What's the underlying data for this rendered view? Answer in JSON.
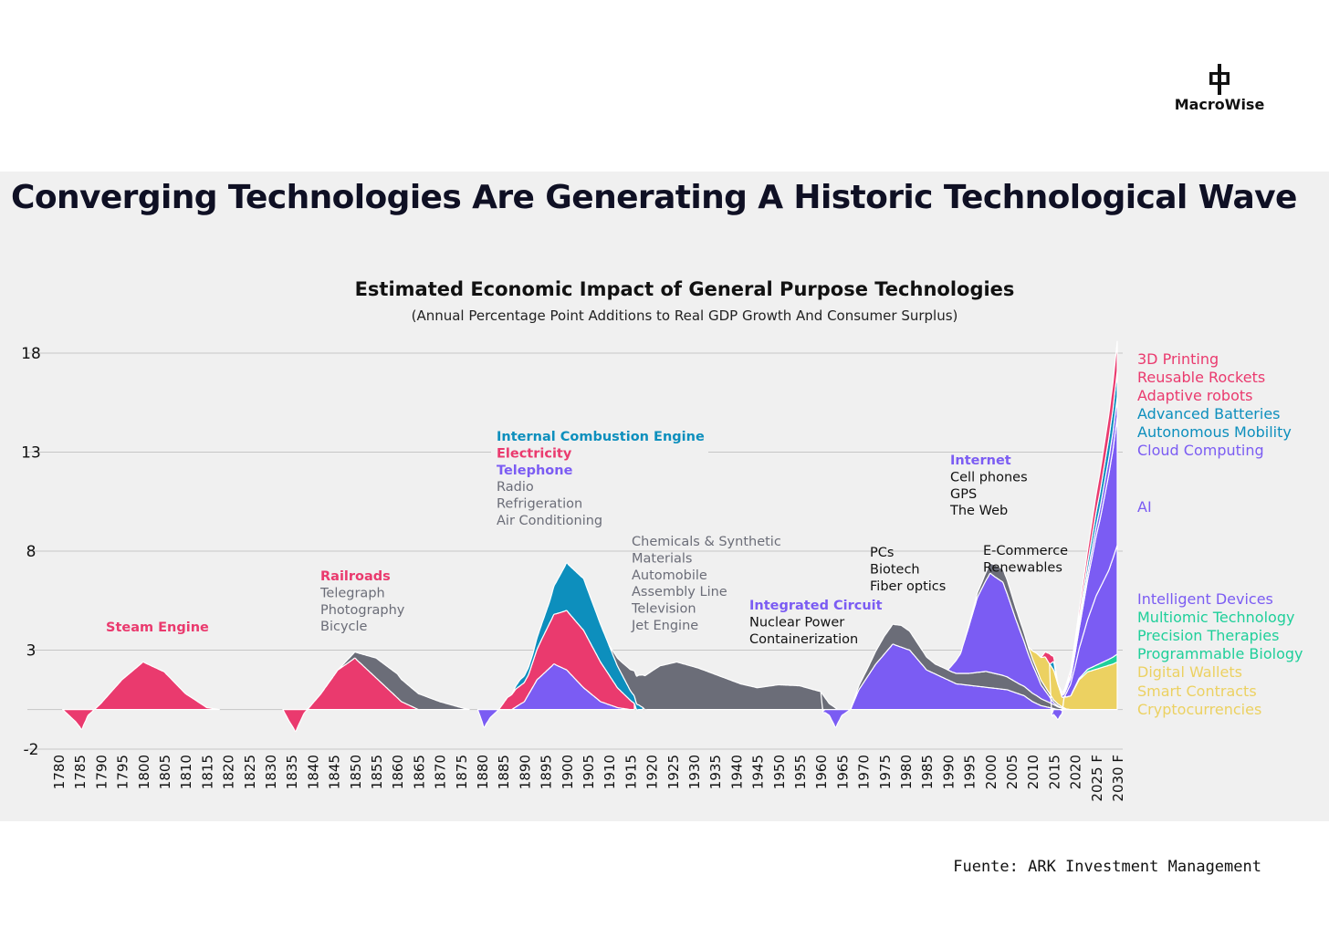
{
  "brand": {
    "name": "MacroWise"
  },
  "headline": "Converging Technologies Are Generating A Historic Technological Wave",
  "source": "Fuente: ARK Investment Management",
  "colors": {
    "pink": "#ea3a6e",
    "blue": "#0d8fbd",
    "purple": "#7b5cf3",
    "gray": "#6b6d78",
    "teal": "#1fcf9a",
    "yellow": "#ecd161",
    "panel": "#f0f0f0",
    "title": "#0f1024"
  },
  "chart_data": {
    "type": "area",
    "title": "Estimated Economic Impact of General Purpose Technologies",
    "subtitle": "(Annual Percentage Point Additions to Real GDP Growth And Consumer Surplus)",
    "xlabel": "",
    "ylabel": "",
    "ylim": [
      -2,
      18
    ],
    "y_ticks": [
      18,
      13,
      8,
      3,
      -2
    ],
    "grid": true,
    "x_ticks": [
      "1780",
      "1785",
      "1790",
      "1795",
      "1800",
      "1805",
      "1810",
      "1815",
      "1820",
      "1825",
      "1830",
      "1835",
      "1840",
      "1845",
      "1850",
      "1855",
      "1860",
      "1865",
      "1870",
      "1875",
      "1880",
      "1885",
      "1890",
      "1895",
      "1900",
      "1905",
      "1910",
      "1915",
      "1920",
      "1925",
      "1930",
      "1935",
      "1940",
      "1945",
      "1950",
      "1955",
      "1960",
      "1965",
      "1970",
      "1975",
      "1980",
      "1985",
      "1990",
      "1995",
      "2000",
      "2005",
      "2010",
      "2015",
      "2020",
      "2025 F",
      "2030 F"
    ],
    "x_tick_years": [
      1780,
      1785,
      1790,
      1795,
      1800,
      1805,
      1810,
      1815,
      1820,
      1825,
      1830,
      1835,
      1840,
      1845,
      1850,
      1855,
      1860,
      1865,
      1870,
      1875,
      1880,
      1885,
      1890,
      1895,
      1900,
      1905,
      1910,
      1915,
      1920,
      1925,
      1930,
      1935,
      1940,
      1945,
      1950,
      1955,
      1960,
      1965,
      1970,
      1975,
      1980,
      1985,
      1990,
      1995,
      2000,
      2005,
      2010,
      2015,
      2020,
      2025,
      2030
    ],
    "series": [
      {
        "name": "Steam Engine",
        "color": "pink",
        "x": [
          1781,
          1784,
          1785.5,
          1787,
          1790,
          1795,
          1800,
          1805,
          1810,
          1815,
          1818
        ],
        "y": [
          0,
          -0.6,
          -1.0,
          -0.3,
          0.3,
          1.5,
          2.4,
          1.9,
          0.8,
          0.1,
          0
        ]
      },
      {
        "name": "Railroads",
        "color": "pink",
        "x": [
          1833,
          1834.5,
          1836,
          1838,
          1842,
          1846,
          1850,
          1853,
          1857,
          1861,
          1865
        ],
        "y": [
          0,
          -0.6,
          -1.1,
          -0.2,
          0.8,
          2.0,
          2.6,
          2.0,
          1.2,
          0.4,
          0
        ]
      },
      {
        "name": "Telegraph, Photography, Bicycle",
        "color": "gray",
        "x": [
          1846,
          1850,
          1855,
          1860,
          1865,
          1870,
          1875,
          1877
        ],
        "y": [
          0,
          0.3,
          1.0,
          1.2,
          0.8,
          0.4,
          0.1,
          0
        ]
      },
      {
        "name": "Telephone, Radio",
        "color": "purple",
        "x": [
          1879,
          1880.5,
          1882,
          1884,
          1887,
          1890,
          1893,
          1897,
          1900,
          1904,
          1908,
          1912,
          1915
        ],
        "y": [
          0,
          -0.9,
          -0.4,
          0,
          0,
          0.4,
          1.5,
          2.3,
          2.0,
          1.1,
          0.4,
          0.1,
          0
        ]
      },
      {
        "name": "Electricity",
        "color": "pink",
        "x": [
          1884,
          1886,
          1888,
          1891,
          1894,
          1897,
          1900,
          1904,
          1908,
          1912,
          1916
        ],
        "y": [
          0,
          0.6,
          0.9,
          1.0,
          1.8,
          2.5,
          3.0,
          2.9,
          2.0,
          1.0,
          0.3
        ]
      },
      {
        "name": "Internal Combustion Engine",
        "color": "blue",
        "x": [
          1887,
          1889,
          1892,
          1896,
          1900,
          1904,
          1908,
          1912,
          1915,
          1918
        ],
        "y": [
          0,
          0.3,
          0.4,
          1.1,
          2.4,
          2.6,
          1.9,
          1.1,
          0.5,
          0.1
        ]
      },
      {
        "name": "Chemicals & Synthetic Materials, Automobile, Assembly Line, Television, Jet Engine",
        "color": "gray",
        "x": [
          1910,
          1913,
          1917,
          1922,
          1926,
          1931,
          1936,
          1941,
          1945,
          1950,
          1955,
          1960,
          1962,
          1964,
          1967
        ],
        "y": [
          0,
          0.6,
          1.5,
          2.2,
          2.4,
          2.1,
          1.7,
          1.3,
          1.1,
          1.25,
          1.2,
          0.9,
          0.3,
          0,
          0
        ]
      },
      {
        "name": "Integrated Circuit",
        "color": "purple",
        "x": [
          1960,
          1962,
          1963.5,
          1965,
          1967,
          1969,
          1973,
          1977,
          1981,
          1985,
          1989,
          1992,
          1996,
          2000,
          2004,
          2008,
          2010,
          2012,
          2016
        ],
        "y": [
          0,
          -0.3,
          -0.9,
          -0.3,
          0,
          1.0,
          2.3,
          3.3,
          3.0,
          2.0,
          1.6,
          1.3,
          1.2,
          1.1,
          1.0,
          0.7,
          0.4,
          0.2,
          0
        ]
      },
      {
        "name": "PCs, Biotech, Fiber optics",
        "color": "gray",
        "x": [
          1967,
          1971,
          1975,
          1979,
          1983,
          1987,
          1991,
          1995,
          1999,
          2003,
          2007,
          2011,
          2015,
          2018
        ],
        "y": [
          0,
          0.4,
          0.9,
          1.1,
          0.8,
          0.5,
          0.5,
          0.6,
          0.8,
          0.7,
          0.5,
          0.4,
          0.2,
          0
        ]
      },
      {
        "name": "Internet, Cell phones, GPS, The Web",
        "color": "purple",
        "x": [
          1990,
          1993,
          1997,
          2000,
          2003,
          2006,
          2009,
          2012,
          2015,
          2017
        ],
        "y": [
          0,
          1.0,
          3.8,
          5.0,
          4.7,
          3.2,
          1.8,
          0.7,
          0.1,
          0
        ]
      },
      {
        "name": "E-Commerce, Renewables",
        "color": "gray",
        "x": [
          1994,
          1998,
          2001,
          2004,
          2007,
          2010,
          2013,
          2016,
          2019
        ],
        "y": [
          0,
          0.3,
          0.6,
          0.7,
          0.5,
          0.3,
          0.2,
          0.1,
          0
        ]
      },
      {
        "name": "Crypto & Digital Wallets",
        "color": "yellow",
        "x": [
          2009,
          2011,
          2013,
          2015,
          2017,
          2019,
          2021,
          2023,
          2026,
          2029,
          2030
        ],
        "y": [
          0,
          0.8,
          1.5,
          1.5,
          0.5,
          0.7,
          1.5,
          1.9,
          2.1,
          2.3,
          2.4
        ]
      },
      {
        "name": "Programmable Biology",
        "color": "teal",
        "x": [
          2016,
          2019,
          2022,
          2025,
          2028,
          2030
        ],
        "y": [
          0,
          0,
          0.1,
          0.2,
          0.3,
          0.4
        ]
      },
      {
        "name": "Intelligent Devices",
        "color": "purple",
        "x": [
          2014,
          2016,
          2018,
          2020,
          2022,
          2025,
          2028,
          2030
        ],
        "y": [
          0,
          -0.5,
          0.2,
          1.0,
          2.0,
          3.5,
          4.5,
          5.5
        ]
      },
      {
        "name": "AI",
        "color": "purple",
        "x": [
          2016,
          2019,
          2021,
          2023,
          2026,
          2029,
          2030
        ],
        "y": [
          0,
          0.3,
          1.0,
          2.0,
          3.5,
          5.5,
          6.5
        ]
      },
      {
        "name": "Cloud Computing",
        "color": "purple",
        "x": [
          2016,
          2019,
          2022,
          2025,
          2028,
          2030
        ],
        "y": [
          0,
          0.1,
          0.3,
          0.5,
          0.8,
          1.0
        ]
      },
      {
        "name": "Advanced Batteries & Autonomous Mobility",
        "color": "blue",
        "x": [
          2014,
          2015,
          2016,
          2019,
          2022,
          2025,
          2028,
          2030
        ],
        "y": [
          0,
          0.4,
          0,
          0.1,
          0.4,
          0.7,
          1.0,
          1.3
        ]
      },
      {
        "name": "3D Printing, Reusable Rockets, Adaptive robots",
        "color": "pink",
        "x": [
          2012,
          2014,
          2016,
          2019,
          2022,
          2025,
          2028,
          2030
        ],
        "y": [
          0,
          0.5,
          0,
          0.2,
          0.5,
          0.9,
          1.2,
          1.5
        ]
      }
    ],
    "annotations": [
      {
        "lines": [
          {
            "text": "Steam Engine",
            "color": "pink",
            "bold": true
          }
        ]
      },
      {
        "lines": [
          {
            "text": "Railroads",
            "color": "pink",
            "bold": true
          },
          {
            "text": "Telegraph",
            "color": "gray"
          },
          {
            "text": "Photography",
            "color": "gray"
          },
          {
            "text": "Bicycle",
            "color": "gray"
          }
        ]
      },
      {
        "lines": [
          {
            "text": "Internal Combustion Engine",
            "color": "blue",
            "bold": true
          },
          {
            "text": "Electricity",
            "color": "pink",
            "bold": true
          },
          {
            "text": "Telephone",
            "color": "purple",
            "bold": true
          },
          {
            "text": "Radio",
            "color": "gray"
          },
          {
            "text": "Refrigeration",
            "color": "gray"
          },
          {
            "text": "Air Conditioning",
            "color": "gray"
          }
        ]
      },
      {
        "lines": [
          {
            "text": "Chemicals & Synthetic",
            "color": "gray"
          },
          {
            "text": "Materials",
            "color": "gray"
          },
          {
            "text": "Automobile",
            "color": "gray"
          },
          {
            "text": "Assembly Line",
            "color": "gray"
          },
          {
            "text": "Television",
            "color": "gray"
          },
          {
            "text": "Jet Engine",
            "color": "gray"
          }
        ]
      },
      {
        "lines": [
          {
            "text": "Integrated Circuit",
            "color": "purple",
            "bold": true
          },
          {
            "text": "Nuclear Power",
            "color": "black"
          },
          {
            "text": "Containerization",
            "color": "black"
          }
        ]
      },
      {
        "lines": [
          {
            "text": "PCs",
            "color": "black"
          },
          {
            "text": "Biotech",
            "color": "black"
          },
          {
            "text": "Fiber optics",
            "color": "black"
          }
        ]
      },
      {
        "lines": [
          {
            "text": "Internet",
            "color": "purple",
            "bold": true
          },
          {
            "text": "Cell phones",
            "color": "black"
          },
          {
            "text": "GPS",
            "color": "black"
          },
          {
            "text": "The Web",
            "color": "black"
          }
        ]
      },
      {
        "lines": [
          {
            "text": "E-Commerce",
            "color": "black"
          },
          {
            "text": "Renewables",
            "color": "black"
          }
        ]
      }
    ],
    "legend": [
      {
        "text": "3D Printing",
        "color": "pink"
      },
      {
        "text": "Reusable Rockets",
        "color": "pink"
      },
      {
        "text": "Adaptive robots",
        "color": "pink"
      },
      {
        "text": "Advanced Batteries",
        "color": "blue"
      },
      {
        "text": "Autonomous Mobility",
        "color": "blue"
      },
      {
        "text": "Cloud Computing",
        "color": "purple"
      },
      {
        "text": "AI",
        "color": "purple"
      },
      {
        "text": "Intelligent Devices",
        "color": "purple"
      },
      {
        "text": "Multiomic Technology",
        "color": "teal"
      },
      {
        "text": "Precision Therapies",
        "color": "teal"
      },
      {
        "text": "Programmable Biology",
        "color": "teal"
      },
      {
        "text": "Digital Wallets",
        "color": "yellow"
      },
      {
        "text": "Smart Contracts",
        "color": "yellow"
      },
      {
        "text": "Cryptocurrencies",
        "color": "yellow"
      }
    ]
  }
}
